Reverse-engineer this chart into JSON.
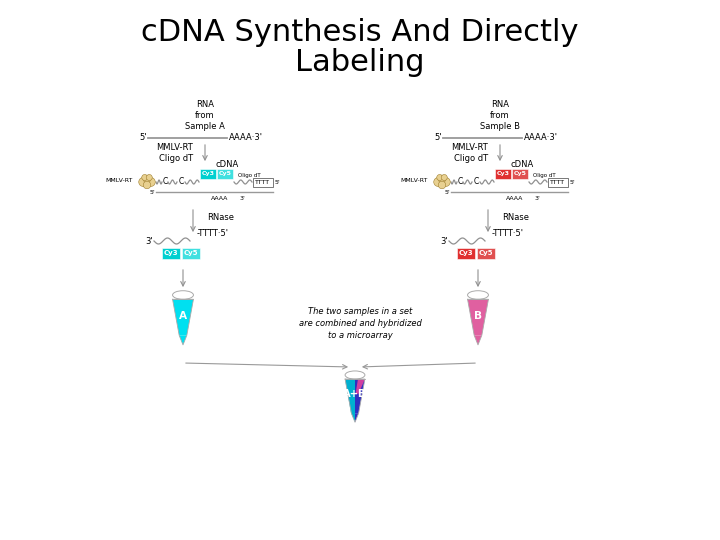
{
  "title_line1": "cDNA Synthesis And Directly",
  "title_line2": "Labeling",
  "title_fontsize": 22,
  "title_color": "#000000",
  "bg_color": "#ffffff",
  "cy3_cyan_color": "#00d0d0",
  "cy5_cyan_color": "#40e0e0",
  "cy3_red_color": "#e03030",
  "cy5_red_color": "#e05050",
  "tube_A_color": "#00e0f0",
  "tube_B_color": "#e060a0",
  "tube_AB_cyan": "#00b0d0",
  "tube_AB_blue": "#3030c0",
  "tube_AB_pink": "#d040a0",
  "arrow_color": "#909090",
  "line_color": "#909090",
  "ribosome_color": "#e8d090",
  "ribosome_edge": "#a08030",
  "text_color": "#000000",
  "small_fs": 5,
  "med_fs": 6,
  "combine_text": "The two samples in a set\nare combined and hybridized\nto a microarray"
}
